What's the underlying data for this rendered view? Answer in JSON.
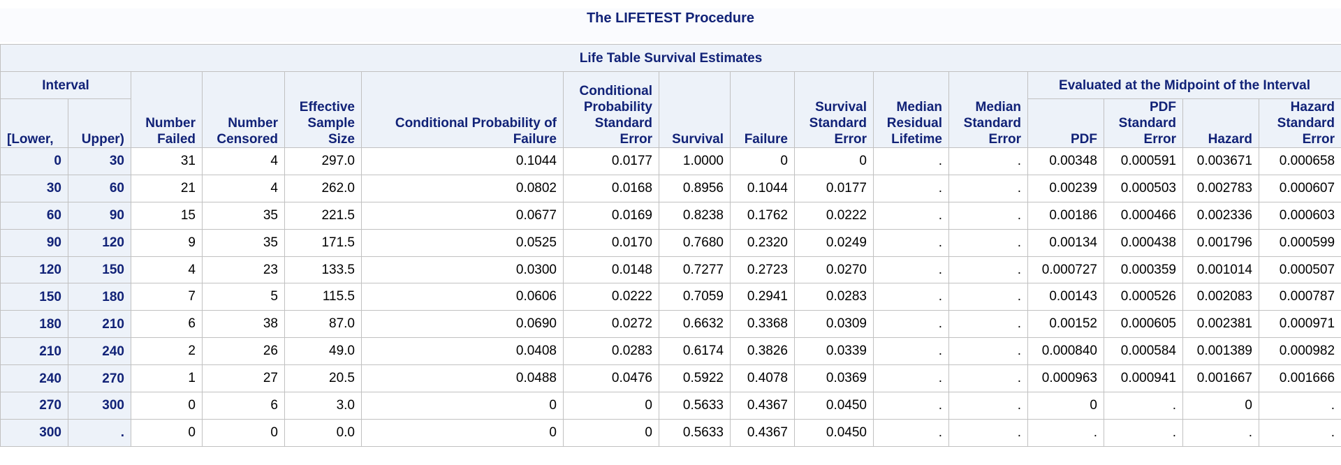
{
  "procedure_title": "The LIFETEST Procedure",
  "table_title": "Life Table Survival Estimates",
  "group_headers": {
    "interval": "Interval",
    "midpoint": "Evaluated at the Midpoint of the Interval"
  },
  "columns": {
    "lower": "[Lower,",
    "upper": "Upper)",
    "failed": [
      "Number",
      "Failed"
    ],
    "censored": [
      "Number",
      "Censored"
    ],
    "effective": [
      "Effective",
      "Sample",
      "Size"
    ],
    "cond_prob": [
      "Conditional Probability of",
      "Failure"
    ],
    "cond_prob_se": [
      "Conditional",
      "Probability",
      "Standard",
      "Error"
    ],
    "survival": "Survival",
    "failure": "Failure",
    "survival_se": [
      "Survival",
      "Standard",
      "Error"
    ],
    "median_residual": [
      "Median",
      "Residual",
      "Lifetime"
    ],
    "median_se": [
      "Median",
      "Standard",
      "Error"
    ],
    "pdf": "PDF",
    "pdf_se": [
      "PDF",
      "Standard",
      "Error"
    ],
    "hazard": "Hazard",
    "hazard_se": [
      "Hazard",
      "Standard",
      "Error"
    ]
  },
  "rows": [
    {
      "lower": "0",
      "upper": "30",
      "failed": "31",
      "censored": "4",
      "effective": "297.0",
      "cond_prob": "0.1044",
      "cond_prob_se": "0.0177",
      "survival": "1.0000",
      "failure": "0",
      "survival_se": "0",
      "median_residual": ".",
      "median_se": ".",
      "pdf": "0.00348",
      "pdf_se": "0.000591",
      "hazard": "0.003671",
      "hazard_se": "0.000658"
    },
    {
      "lower": "30",
      "upper": "60",
      "failed": "21",
      "censored": "4",
      "effective": "262.0",
      "cond_prob": "0.0802",
      "cond_prob_se": "0.0168",
      "survival": "0.8956",
      "failure": "0.1044",
      "survival_se": "0.0177",
      "median_residual": ".",
      "median_se": ".",
      "pdf": "0.00239",
      "pdf_se": "0.000503",
      "hazard": "0.002783",
      "hazard_se": "0.000607"
    },
    {
      "lower": "60",
      "upper": "90",
      "failed": "15",
      "censored": "35",
      "effective": "221.5",
      "cond_prob": "0.0677",
      "cond_prob_se": "0.0169",
      "survival": "0.8238",
      "failure": "0.1762",
      "survival_se": "0.0222",
      "median_residual": ".",
      "median_se": ".",
      "pdf": "0.00186",
      "pdf_se": "0.000466",
      "hazard": "0.002336",
      "hazard_se": "0.000603"
    },
    {
      "lower": "90",
      "upper": "120",
      "failed": "9",
      "censored": "35",
      "effective": "171.5",
      "cond_prob": "0.0525",
      "cond_prob_se": "0.0170",
      "survival": "0.7680",
      "failure": "0.2320",
      "survival_se": "0.0249",
      "median_residual": ".",
      "median_se": ".",
      "pdf": "0.00134",
      "pdf_se": "0.000438",
      "hazard": "0.001796",
      "hazard_se": "0.000599"
    },
    {
      "lower": "120",
      "upper": "150",
      "failed": "4",
      "censored": "23",
      "effective": "133.5",
      "cond_prob": "0.0300",
      "cond_prob_se": "0.0148",
      "survival": "0.7277",
      "failure": "0.2723",
      "survival_se": "0.0270",
      "median_residual": ".",
      "median_se": ".",
      "pdf": "0.000727",
      "pdf_se": "0.000359",
      "hazard": "0.001014",
      "hazard_se": "0.000507"
    },
    {
      "lower": "150",
      "upper": "180",
      "failed": "7",
      "censored": "5",
      "effective": "115.5",
      "cond_prob": "0.0606",
      "cond_prob_se": "0.0222",
      "survival": "0.7059",
      "failure": "0.2941",
      "survival_se": "0.0283",
      "median_residual": ".",
      "median_se": ".",
      "pdf": "0.00143",
      "pdf_se": "0.000526",
      "hazard": "0.002083",
      "hazard_se": "0.000787"
    },
    {
      "lower": "180",
      "upper": "210",
      "failed": "6",
      "censored": "38",
      "effective": "87.0",
      "cond_prob": "0.0690",
      "cond_prob_se": "0.0272",
      "survival": "0.6632",
      "failure": "0.3368",
      "survival_se": "0.0309",
      "median_residual": ".",
      "median_se": ".",
      "pdf": "0.00152",
      "pdf_se": "0.000605",
      "hazard": "0.002381",
      "hazard_se": "0.000971"
    },
    {
      "lower": "210",
      "upper": "240",
      "failed": "2",
      "censored": "26",
      "effective": "49.0",
      "cond_prob": "0.0408",
      "cond_prob_se": "0.0283",
      "survival": "0.6174",
      "failure": "0.3826",
      "survival_se": "0.0339",
      "median_residual": ".",
      "median_se": ".",
      "pdf": "0.000840",
      "pdf_se": "0.000584",
      "hazard": "0.001389",
      "hazard_se": "0.000982"
    },
    {
      "lower": "240",
      "upper": "270",
      "failed": "1",
      "censored": "27",
      "effective": "20.5",
      "cond_prob": "0.0488",
      "cond_prob_se": "0.0476",
      "survival": "0.5922",
      "failure": "0.4078",
      "survival_se": "0.0369",
      "median_residual": ".",
      "median_se": ".",
      "pdf": "0.000963",
      "pdf_se": "0.000941",
      "hazard": "0.001667",
      "hazard_se": "0.001666"
    },
    {
      "lower": "270",
      "upper": "300",
      "failed": "0",
      "censored": "6",
      "effective": "3.0",
      "cond_prob": "0",
      "cond_prob_se": "0",
      "survival": "0.5633",
      "failure": "0.4367",
      "survival_se": "0.0450",
      "median_residual": ".",
      "median_se": ".",
      "pdf": "0",
      "pdf_se": ".",
      "hazard": "0",
      "hazard_se": "."
    },
    {
      "lower": "300",
      "upper": ".",
      "failed": "0",
      "censored": "0",
      "effective": "0.0",
      "cond_prob": "0",
      "cond_prob_se": "0",
      "survival": "0.5633",
      "failure": "0.4367",
      "survival_se": "0.0450",
      "median_residual": ".",
      "median_se": ".",
      "pdf": ".",
      "pdf_se": ".",
      "hazard": ".",
      "hazard_se": "."
    }
  ],
  "colors": {
    "header_text": "#112277",
    "header_background": "#edf2f9",
    "grid_lines": "#c1c1c1"
  }
}
